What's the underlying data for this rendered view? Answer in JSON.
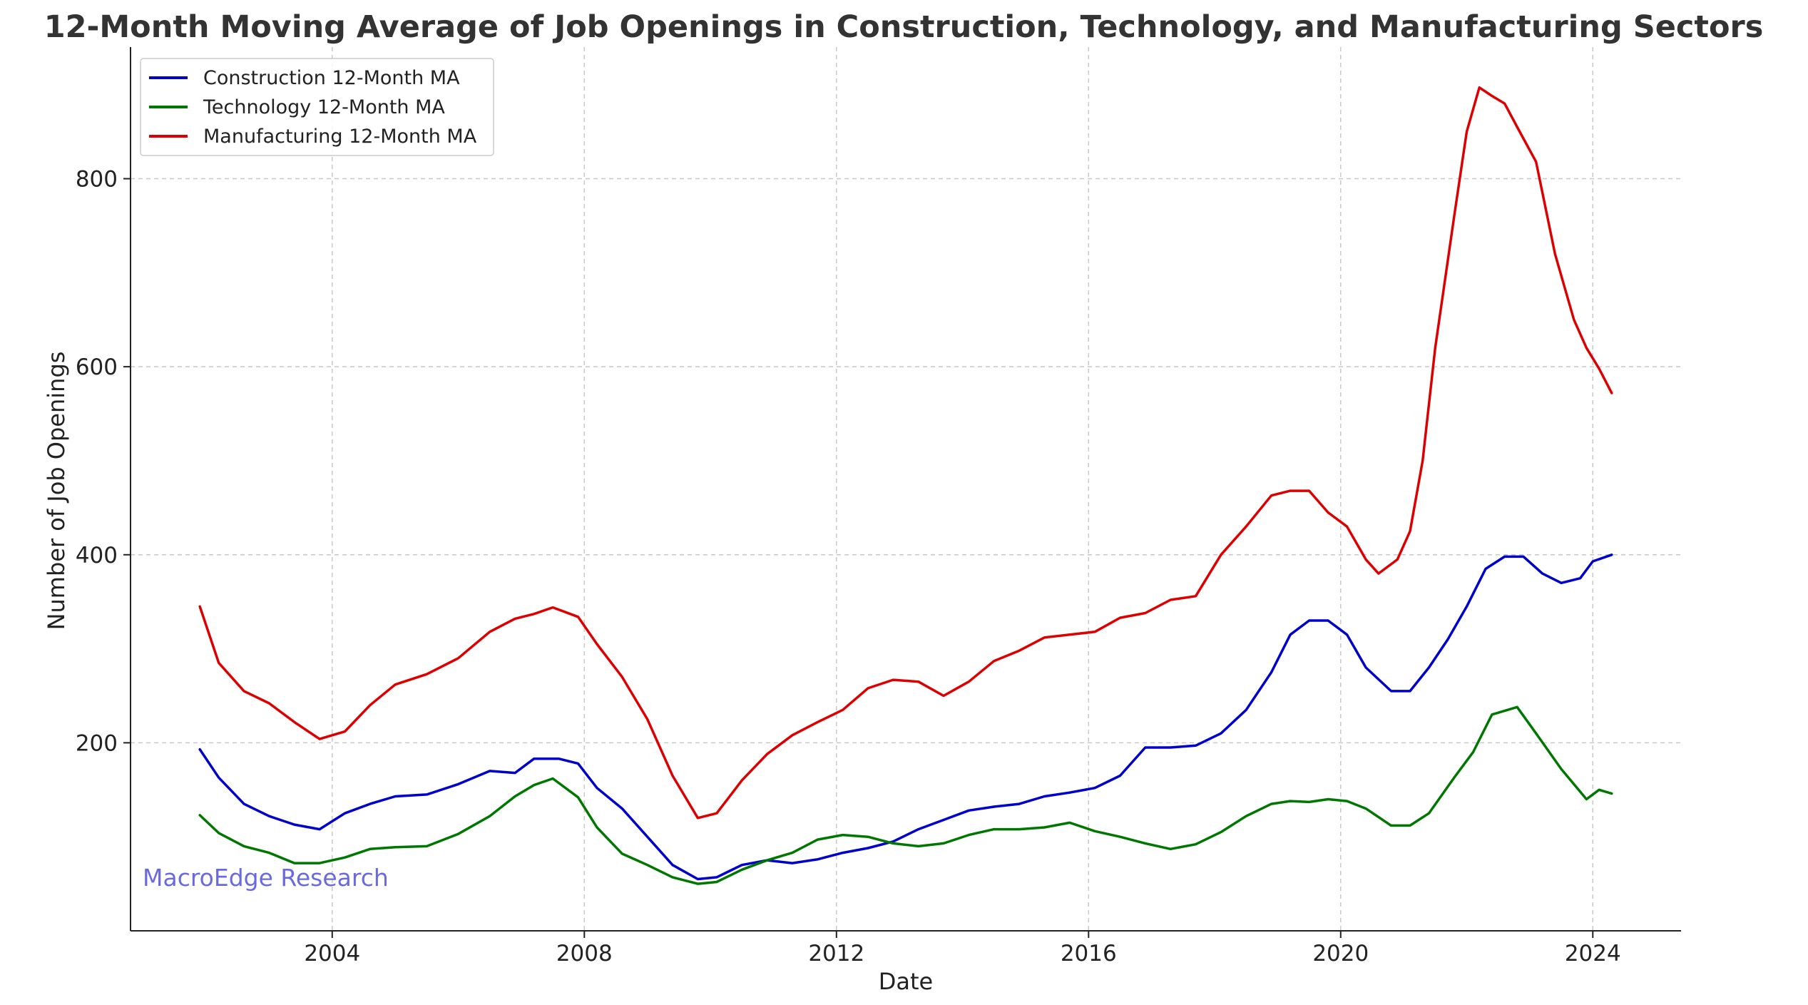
{
  "chart_data": {
    "type": "line",
    "title": "12-Month Moving Average of Job Openings in Construction, Technology, and Manufacturing Sectors",
    "xlabel": "Date",
    "ylabel": "Number of Job Openings",
    "xlim": [
      2000.8,
      2025.4
    ],
    "ylim": [
      0,
      940
    ],
    "xticks": [
      2004,
      2008,
      2012,
      2016,
      2020,
      2024
    ],
    "yticks": [
      200,
      400,
      600,
      800
    ],
    "grid": true,
    "legend_position": "top-left",
    "watermark": "MacroEdge Research",
    "series": [
      {
        "name": "Construction 12-Month MA",
        "color": "#0000cc",
        "x": [
          2001.9,
          2002.2,
          2002.6,
          2003.0,
          2003.4,
          2003.8,
          2004.2,
          2004.6,
          2005.0,
          2005.5,
          2006.0,
          2006.5,
          2006.9,
          2007.2,
          2007.6,
          2007.9,
          2008.2,
          2008.6,
          2009.0,
          2009.4,
          2009.8,
          2010.1,
          2010.5,
          2010.9,
          2011.3,
          2011.7,
          2012.1,
          2012.5,
          2012.9,
          2013.3,
          2013.7,
          2014.1,
          2014.5,
          2014.9,
          2015.3,
          2015.7,
          2016.1,
          2016.5,
          2016.9,
          2017.3,
          2017.7,
          2018.1,
          2018.5,
          2018.9,
          2019.2,
          2019.5,
          2019.8,
          2020.1,
          2020.4,
          2020.8,
          2021.1,
          2021.4,
          2021.7,
          2022.0,
          2022.3,
          2022.6,
          2022.9,
          2023.2,
          2023.5,
          2023.8,
          2024.0,
          2024.3
        ],
        "values": [
          193,
          163,
          135,
          122,
          113,
          108,
          125,
          135,
          143,
          145,
          156,
          170,
          168,
          183,
          183,
          178,
          152,
          130,
          100,
          70,
          55,
          57,
          70,
          75,
          72,
          76,
          83,
          88,
          95,
          108,
          118,
          128,
          132,
          135,
          143,
          147,
          152,
          165,
          195,
          195,
          197,
          210,
          235,
          275,
          315,
          330,
          330,
          315,
          280,
          255,
          255,
          280,
          310,
          345,
          385,
          398,
          398,
          380,
          370,
          375,
          393,
          400
        ]
      },
      {
        "name": "Technology 12-Month MA",
        "color": "#007700",
        "x": [
          2001.9,
          2002.2,
          2002.6,
          2003.0,
          2003.4,
          2003.8,
          2004.2,
          2004.6,
          2005.0,
          2005.5,
          2006.0,
          2006.5,
          2006.9,
          2007.2,
          2007.5,
          2007.9,
          2008.2,
          2008.6,
          2009.0,
          2009.4,
          2009.8,
          2010.1,
          2010.5,
          2010.9,
          2011.3,
          2011.7,
          2012.1,
          2012.5,
          2012.9,
          2013.3,
          2013.7,
          2014.1,
          2014.5,
          2014.9,
          2015.3,
          2015.7,
          2016.1,
          2016.5,
          2016.9,
          2017.3,
          2017.7,
          2018.1,
          2018.5,
          2018.9,
          2019.2,
          2019.5,
          2019.8,
          2020.1,
          2020.4,
          2020.8,
          2021.1,
          2021.4,
          2021.8,
          2022.1,
          2022.4,
          2022.8,
          2023.1,
          2023.5,
          2023.9,
          2024.1,
          2024.3
        ],
        "values": [
          123,
          104,
          90,
          83,
          72,
          72,
          78,
          87,
          89,
          90,
          103,
          122,
          143,
          155,
          162,
          142,
          110,
          82,
          70,
          57,
          50,
          52,
          65,
          75,
          83,
          97,
          102,
          100,
          93,
          90,
          93,
          102,
          108,
          108,
          110,
          115,
          106,
          100,
          93,
          87,
          92,
          105,
          122,
          135,
          138,
          137,
          140,
          138,
          130,
          112,
          112,
          125,
          163,
          190,
          230,
          238,
          210,
          172,
          140,
          150,
          146
        ]
      },
      {
        "name": "Manufacturing 12-Month MA",
        "color": "#dd0000",
        "x": [
          2001.9,
          2002.2,
          2002.6,
          2003.0,
          2003.4,
          2003.8,
          2004.2,
          2004.6,
          2005.0,
          2005.5,
          2006.0,
          2006.5,
          2006.9,
          2007.2,
          2007.5,
          2007.9,
          2008.2,
          2008.6,
          2009.0,
          2009.4,
          2009.8,
          2010.1,
          2010.5,
          2010.9,
          2011.3,
          2011.7,
          2012.1,
          2012.5,
          2012.9,
          2013.3,
          2013.7,
          2014.1,
          2014.5,
          2014.9,
          2015.3,
          2015.7,
          2016.1,
          2016.5,
          2016.9,
          2017.3,
          2017.7,
          2018.1,
          2018.5,
          2018.9,
          2019.2,
          2019.5,
          2019.8,
          2020.1,
          2020.4,
          2020.6,
          2020.9,
          2021.1,
          2021.3,
          2021.5,
          2021.8,
          2022.0,
          2022.2,
          2022.4,
          2022.6,
          2022.8,
          2023.1,
          2023.4,
          2023.7,
          2023.9,
          2024.1,
          2024.3
        ],
        "values": [
          345,
          285,
          255,
          242,
          222,
          204,
          212,
          240,
          262,
          273,
          290,
          318,
          332,
          337,
          344,
          334,
          305,
          270,
          225,
          165,
          120,
          125,
          160,
          188,
          208,
          222,
          235,
          258,
          267,
          265,
          250,
          265,
          287,
          298,
          312,
          315,
          318,
          333,
          338,
          352,
          356,
          400,
          430,
          463,
          468,
          468,
          445,
          430,
          395,
          380,
          395,
          425,
          500,
          620,
          760,
          850,
          897,
          888,
          880,
          855,
          818,
          720,
          650,
          620,
          598,
          572
        ]
      }
    ]
  }
}
